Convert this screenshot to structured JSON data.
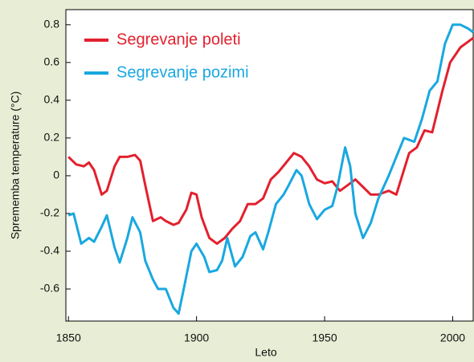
{
  "chart_data": {
    "type": "line",
    "x_label": "Leto",
    "y_label": "Sprememba temperature (°C)",
    "xlim": [
      1849,
      2008
    ],
    "ylim": [
      -0.77,
      0.88
    ],
    "xticks": [
      1850,
      1900,
      1950,
      2000
    ],
    "yticks": [
      {
        "value": 0.8,
        "label": "0.8"
      },
      {
        "value": 0.6,
        "label": "0.6"
      },
      {
        "value": 0.4,
        "label": "0.4"
      },
      {
        "value": 0.2,
        "label": "0.2"
      },
      0,
      {
        "value": -0.2,
        "label": "-0.2"
      },
      {
        "value": -0.4,
        "label": "-0.4"
      },
      {
        "value": -0.6,
        "label": "-0.6"
      }
    ],
    "legend": "upper left",
    "series": [
      {
        "name": "Segrevanje poleti",
        "color": "#e3202e",
        "x": [
          1850,
          1853,
          1856,
          1858,
          1860,
          1863,
          1865,
          1868,
          1870,
          1873,
          1876,
          1878,
          1880,
          1883,
          1886,
          1888,
          1891,
          1893,
          1896,
          1898,
          1900,
          1902,
          1905,
          1908,
          1911,
          1914,
          1917,
          1920,
          1923,
          1926,
          1929,
          1932,
          1935,
          1938,
          1941,
          1944,
          1947,
          1950,
          1953,
          1956,
          1959,
          1962,
          1965,
          1968,
          1971,
          1975,
          1978,
          1983,
          1986,
          1989,
          1992,
          1996,
          1999,
          2003,
          2008
        ],
        "values": [
          0.1,
          0.06,
          0.05,
          0.07,
          0.03,
          -0.1,
          -0.08,
          0.05,
          0.1,
          0.1,
          0.11,
          0.08,
          -0.05,
          -0.24,
          -0.22,
          -0.24,
          -0.26,
          -0.25,
          -0.18,
          -0.09,
          -0.1,
          -0.22,
          -0.33,
          -0.36,
          -0.33,
          -0.28,
          -0.24,
          -0.15,
          -0.15,
          -0.12,
          -0.02,
          0.02,
          0.07,
          0.12,
          0.1,
          0.05,
          -0.02,
          -0.04,
          -0.03,
          -0.08,
          -0.05,
          -0.02,
          -0.06,
          -0.1,
          -0.1,
          -0.08,
          -0.1,
          0.12,
          0.15,
          0.24,
          0.23,
          0.45,
          0.6,
          0.68,
          0.73
        ]
      },
      {
        "name": "Segrevanje pozimi",
        "color": "#19a8e0",
        "x": [
          1850,
          1852,
          1855,
          1858,
          1860,
          1863,
          1865,
          1868,
          1870,
          1873,
          1875,
          1878,
          1880,
          1883,
          1885,
          1888,
          1891,
          1893,
          1895,
          1898,
          1900,
          1903,
          1905,
          1908,
          1910,
          1912,
          1915,
          1918,
          1921,
          1923,
          1926,
          1928,
          1931,
          1934,
          1936,
          1939,
          1941,
          1944,
          1947,
          1950,
          1953,
          1955,
          1958,
          1960,
          1962,
          1965,
          1968,
          1971,
          1975,
          1978,
          1981,
          1985,
          1988,
          1991,
          1994,
          1997,
          2000,
          2003,
          2006,
          2008
        ],
        "values": [
          -0.21,
          -0.2,
          -0.36,
          -0.33,
          -0.35,
          -0.27,
          -0.21,
          -0.38,
          -0.46,
          -0.33,
          -0.22,
          -0.3,
          -0.45,
          -0.55,
          -0.6,
          -0.6,
          -0.7,
          -0.73,
          -0.6,
          -0.4,
          -0.36,
          -0.43,
          -0.51,
          -0.5,
          -0.45,
          -0.33,
          -0.48,
          -0.43,
          -0.32,
          -0.3,
          -0.39,
          -0.3,
          -0.15,
          -0.1,
          -0.05,
          0.03,
          0.0,
          -0.15,
          -0.23,
          -0.18,
          -0.16,
          -0.06,
          0.15,
          0.05,
          -0.2,
          -0.33,
          -0.25,
          -0.12,
          0.0,
          0.1,
          0.2,
          0.18,
          0.3,
          0.45,
          0.5,
          0.7,
          0.8,
          0.8,
          0.78,
          0.76
        ]
      }
    ]
  }
}
